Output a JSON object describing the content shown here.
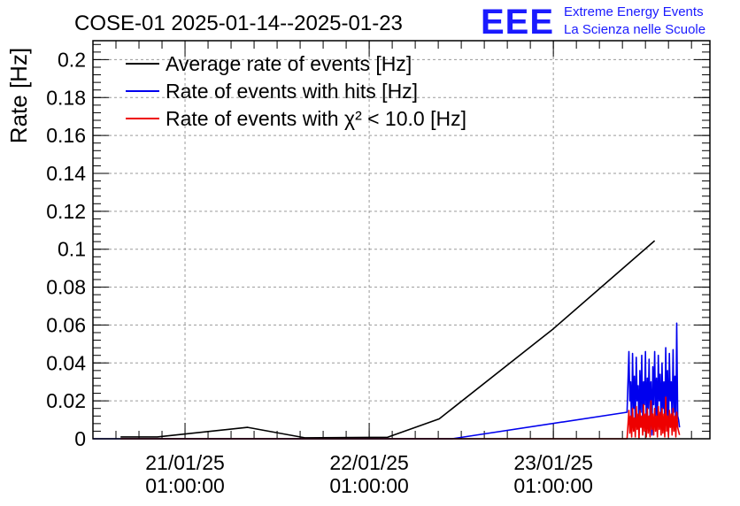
{
  "colors": {
    "average": "#000000",
    "hits": "#0000ee",
    "chi2": "#ee0000",
    "logo": "#1a1aff",
    "grid": "#9a9a9a"
  },
  "header": {
    "logo_text": "EEE",
    "logo_line1": "Extreme Energy Events",
    "logo_line2": "La Scienza nelle Scuole"
  },
  "chart_data": {
    "type": "line",
    "title": "COSE-01 2025-01-14--2025-01-23",
    "xlabel": "",
    "ylabel": "Rate [Hz]",
    "xlim": [
      -0.5,
      2.85
    ],
    "ylim": [
      0,
      0.21
    ],
    "xticks": [
      {
        "x": 0,
        "line1": "21/01/25",
        "line2": "01:00:00"
      },
      {
        "x": 1,
        "line1": "22/01/25",
        "line2": "01:00:00"
      },
      {
        "x": 2,
        "line1": "23/01/25",
        "line2": "01:00:00"
      }
    ],
    "yticks": [
      0,
      0.02,
      0.04,
      0.06,
      0.08,
      0.1,
      0.12,
      0.14,
      0.16,
      0.18,
      0.2
    ],
    "ytick_labels": [
      "0",
      "0.02",
      "0.04",
      "0.06",
      "0.08",
      "0.1",
      "0.12",
      "0.14",
      "0.16",
      "0.18",
      "0.2"
    ],
    "grid": true,
    "legend": "top-left",
    "series": [
      {
        "name": "Average rate of events [Hz]",
        "color": "#000000",
        "x": [
          -0.35,
          -0.15,
          0.34,
          0.65,
          1.1,
          1.38,
          2.0,
          2.55
        ],
        "y": [
          0.001,
          0.001,
          0.006,
          0.0005,
          0.0008,
          0.0105,
          0.058,
          0.1045
        ]
      },
      {
        "name": "Rate of events with hits [Hz]",
        "color": "#0000ee",
        "x": [
          -0.5,
          1.45,
          2.4,
          2.41,
          2.415,
          2.42,
          2.425,
          2.43,
          2.435,
          2.44,
          2.445,
          2.45,
          2.455,
          2.46,
          2.465,
          2.47,
          2.475,
          2.48,
          2.485,
          2.49,
          2.495,
          2.5,
          2.505,
          2.51,
          2.515,
          2.52,
          2.525,
          2.53,
          2.535,
          2.54,
          2.545,
          2.55,
          2.555,
          2.56,
          2.565,
          2.57,
          2.575,
          2.58,
          2.585,
          2.59,
          2.595,
          2.6,
          2.605,
          2.61,
          2.615,
          2.62,
          2.625,
          2.63,
          2.635,
          2.64,
          2.645,
          2.65,
          2.655,
          2.66,
          2.665,
          2.67,
          2.675,
          2.68,
          2.685
        ],
        "y": [
          0,
          0,
          0.014,
          0.046,
          0.02,
          0.03,
          0.004,
          0.045,
          0.016,
          0.033,
          0.006,
          0.043,
          0.02,
          0.028,
          0.002,
          0.036,
          0.014,
          0.044,
          0.008,
          0.03,
          0.018,
          0.046,
          0.004,
          0.032,
          0.016,
          0.042,
          0.01,
          0.03,
          0.002,
          0.038,
          0.018,
          0.046,
          0.012,
          0.032,
          0.003,
          0.044,
          0.02,
          0.034,
          0.006,
          0.04,
          0.016,
          0.03,
          0.004,
          0.048,
          0.012,
          0.036,
          0.002,
          0.045,
          0.02,
          0.03,
          0.008,
          0.047,
          0.014,
          0.033,
          0.004,
          0.061,
          0.012,
          0.01,
          0.006
        ]
      },
      {
        "name": "Rate of events with χ² < 10.0 [Hz]",
        "color": "#ee0000",
        "x": [
          -0.35,
          2.4,
          2.41,
          2.415,
          2.42,
          2.425,
          2.43,
          2.435,
          2.44,
          2.445,
          2.45,
          2.455,
          2.46,
          2.465,
          2.47,
          2.475,
          2.48,
          2.485,
          2.49,
          2.495,
          2.5,
          2.505,
          2.51,
          2.515,
          2.52,
          2.525,
          2.53,
          2.535,
          2.54,
          2.545,
          2.55,
          2.555,
          2.56,
          2.565,
          2.57,
          2.575,
          2.58,
          2.585,
          2.59,
          2.595,
          2.6,
          2.605,
          2.61,
          2.615,
          2.62,
          2.625,
          2.63,
          2.635,
          2.64,
          2.645,
          2.65,
          2.655,
          2.66,
          2.665,
          2.67,
          2.675,
          2.68,
          2.685
        ],
        "y": [
          0,
          0,
          0.015,
          0.003,
          0.012,
          0.001,
          0.016,
          0.004,
          0.011,
          0.001,
          0.017,
          0.005,
          0.013,
          0.0,
          0.015,
          0.006,
          0.012,
          0.002,
          0.018,
          0.004,
          0.013,
          0.001,
          0.016,
          0.003,
          0.012,
          0.001,
          0.02,
          0.005,
          0.013,
          0.002,
          0.016,
          0.004,
          0.012,
          0.001,
          0.017,
          0.005,
          0.014,
          0.002,
          0.016,
          0.003,
          0.013,
          0.001,
          0.022,
          0.004,
          0.012,
          0.001,
          0.015,
          0.006,
          0.013,
          0.002,
          0.016,
          0.004,
          0.012,
          0.001,
          0.014,
          0.006,
          0.004,
          0.002
        ]
      }
    ]
  }
}
